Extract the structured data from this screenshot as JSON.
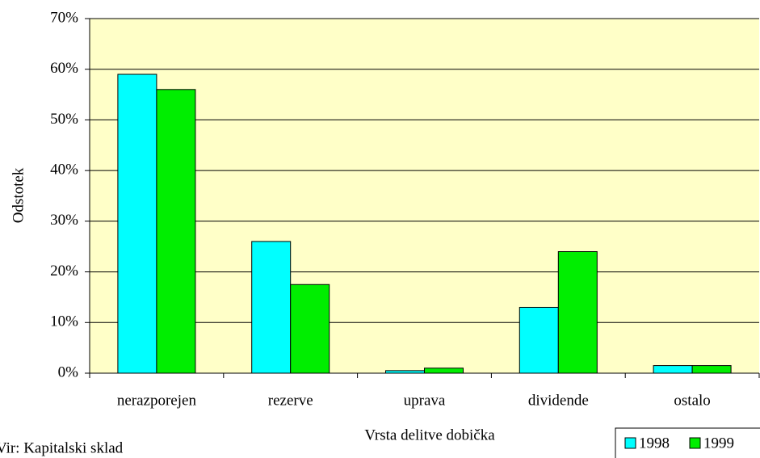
{
  "chart_data": {
    "type": "bar",
    "xlabel": "Vrsta delitve dobička",
    "ylabel": "Odstotek",
    "source": "Vir: Kapitalski sklad",
    "categories": [
      "nerazporejen",
      "rezerve",
      "uprava",
      "dividende",
      "ostalo"
    ],
    "series": [
      {
        "name": "1998",
        "color": "#00ffff",
        "values": [
          59,
          26,
          0.5,
          13,
          1.5
        ]
      },
      {
        "name": "1999",
        "color": "#00ee00",
        "values": [
          56,
          17.5,
          1,
          24,
          1.5
        ]
      }
    ],
    "ylim": [
      0,
      70
    ],
    "yticks": [
      {
        "value": 0,
        "label": "0%"
      },
      {
        "value": 10,
        "label": "10%"
      },
      {
        "value": 20,
        "label": "20%"
      },
      {
        "value": 30,
        "label": "30%"
      },
      {
        "value": 40,
        "label": "40%"
      },
      {
        "value": 50,
        "label": "50%"
      },
      {
        "value": 60,
        "label": "60%"
      },
      {
        "value": 70,
        "label": "70%"
      }
    ],
    "grid": true,
    "plot_background": "#ffffc8",
    "legend": "bottom-right"
  }
}
